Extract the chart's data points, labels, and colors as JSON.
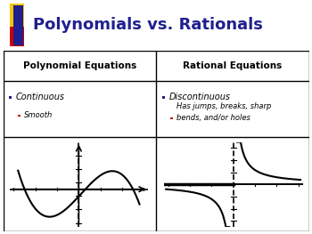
{
  "title": "Polynomials vs. Rationals",
  "title_color": "#1F1F8F",
  "bg_color": "#FFFFFF",
  "col1_header": "Polynomial Equations",
  "col2_header": "Rational Equations",
  "col1_bullet1": "Continuous",
  "col1_bullet2": "Smooth",
  "col2_bullet1": "Discontinuous",
  "col2_bullet2": "Has jumps, breaks, sharp\nbends, and/or holes",
  "bullet1_color": "#1F1F8F",
  "bullet2_color": "#CC0000",
  "logo_yellow": "#F5C500",
  "logo_red": "#CC0000",
  "logo_blue": "#1F1F8F",
  "title_fontsize": 13,
  "header_fontsize": 7.5,
  "bullet1_fontsize": 7.0,
  "bullet2_fontsize": 6.0
}
